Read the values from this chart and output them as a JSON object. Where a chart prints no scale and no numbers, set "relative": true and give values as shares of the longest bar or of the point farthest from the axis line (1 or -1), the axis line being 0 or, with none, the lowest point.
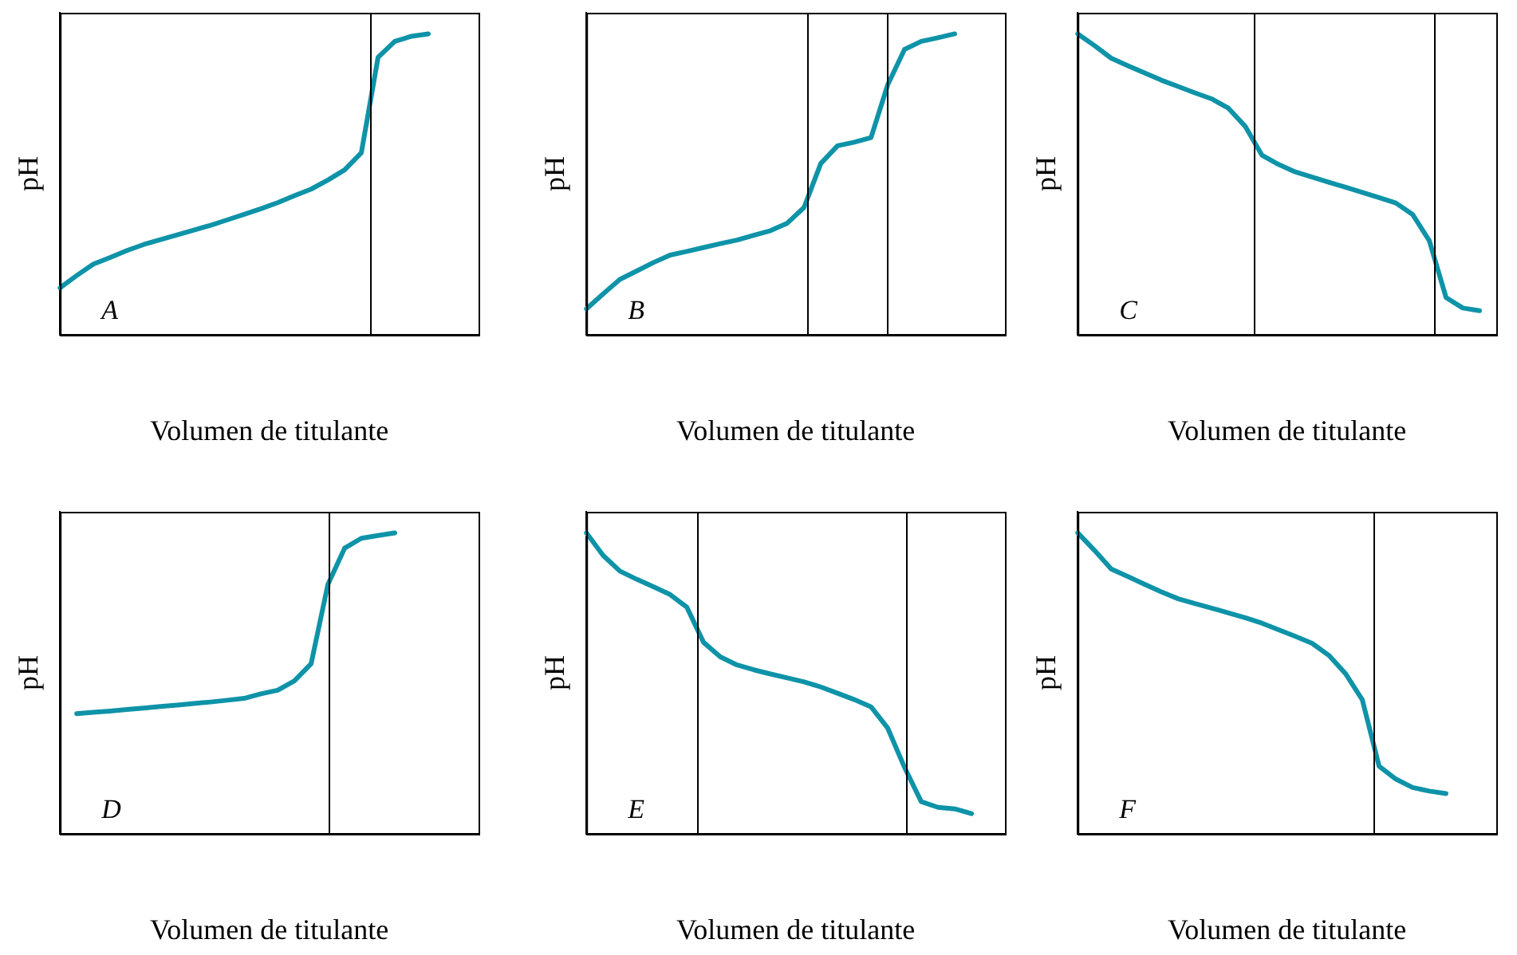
{
  "chart_data": [
    {
      "type": "line",
      "relative": true,
      "xlabel": "Volumen de titulante",
      "ylabel": "pH",
      "annotations": [
        "A"
      ],
      "legend": false,
      "marker": "none",
      "line_style": "solid",
      "categories": [
        null,
        null,
        null,
        null,
        null,
        null,
        null,
        null,
        null,
        null,
        null,
        null,
        null,
        null,
        null,
        null,
        null,
        null,
        null,
        null,
        null,
        null,
        null,
        null,
        null,
        null
      ],
      "series": [
        {
          "color": "#0e93a8",
          "values": [
            0.156,
            0.197,
            0.235,
            0.257,
            0.28,
            0.3,
            0.316,
            0.332,
            0.348,
            0.364,
            0.382,
            0.4,
            0.419,
            0.439,
            0.462,
            0.484,
            0.514,
            0.548,
            0.605,
            0.922,
            0.975,
            0.992,
            1,
            null,
            null,
            null
          ]
        }
      ]
    },
    {
      "type": "line",
      "relative": true,
      "xlabel": "Volumen de titulante",
      "ylabel": "pH",
      "annotations": [
        "B"
      ],
      "legend": false,
      "marker": "none",
      "line_style": "solid",
      "categories": [
        null,
        null,
        null,
        null,
        null,
        null,
        null,
        null,
        null,
        null,
        null,
        null,
        null,
        null,
        null,
        null,
        null,
        null,
        null,
        null,
        null,
        null,
        null,
        null,
        null,
        null
      ],
      "series": [
        {
          "color": "#0e93a8",
          "values": [
            0.086,
            0.136,
            0.184,
            0.212,
            0.24,
            0.265,
            0.277,
            0.29,
            0.303,
            0.315,
            0.331,
            0.346,
            0.371,
            0.423,
            0.569,
            0.628,
            0.64,
            0.655,
            0.831,
            0.948,
            0.975,
            0.987,
            1,
            null,
            null,
            null
          ]
        }
      ]
    },
    {
      "type": "line",
      "relative": true,
      "xlabel": "Volumen de titulante",
      "ylabel": "pH",
      "annotations": [
        "C"
      ],
      "legend": false,
      "marker": "none",
      "line_style": "solid",
      "categories": [
        null,
        null,
        null,
        null,
        null,
        null,
        null,
        null,
        null,
        null,
        null,
        null,
        null,
        null,
        null,
        null,
        null,
        null,
        null,
        null,
        null,
        null,
        null,
        null,
        null,
        null
      ],
      "series": [
        {
          "color": "#0e93a8",
          "values": [
            1,
            0.961,
            0.919,
            0.894,
            0.87,
            0.846,
            0.825,
            0.804,
            0.784,
            0.753,
            0.693,
            0.597,
            0.566,
            0.541,
            0.524,
            0.507,
            0.49,
            0.473,
            0.456,
            0.438,
            0.4,
            0.313,
            0.124,
            0.089,
            0.08,
            null
          ]
        }
      ]
    },
    {
      "type": "line",
      "relative": true,
      "xlabel": "Volumen de titulante",
      "ylabel": "pH",
      "annotations": [
        "D"
      ],
      "legend": false,
      "marker": "none",
      "line_style": "solid",
      "categories": [
        null,
        null,
        null,
        null,
        null,
        null,
        null,
        null,
        null,
        null,
        null,
        null,
        null,
        null,
        null,
        null,
        null,
        null,
        null,
        null,
        null,
        null,
        null,
        null,
        null,
        null
      ],
      "series": [
        {
          "color": "#0e93a8",
          "values": [
            null,
            0.399,
            0.404,
            0.408,
            0.413,
            0.418,
            0.423,
            0.428,
            0.433,
            0.438,
            0.444,
            0.45,
            0.465,
            0.477,
            0.508,
            0.565,
            0.828,
            0.949,
            0.982,
            0.991,
            1,
            null,
            null,
            null,
            null,
            null
          ]
        }
      ]
    },
    {
      "type": "line",
      "relative": true,
      "xlabel": "Volumen de titulante",
      "ylabel": "pH",
      "annotations": [
        "E"
      ],
      "legend": false,
      "marker": "none",
      "line_style": "solid",
      "categories": [
        null,
        null,
        null,
        null,
        null,
        null,
        null,
        null,
        null,
        null,
        null,
        null,
        null,
        null,
        null,
        null,
        null,
        null,
        null,
        null,
        null,
        null,
        null,
        null,
        null,
        null
      ],
      "series": [
        {
          "color": "#0e93a8",
          "values": [
            1,
            0.925,
            0.873,
            0.846,
            0.821,
            0.795,
            0.753,
            0.636,
            0.588,
            0.561,
            0.545,
            0.531,
            0.518,
            0.505,
            0.488,
            0.467,
            0.446,
            0.422,
            0.351,
            0.221,
            0.107,
            0.088,
            0.083,
            0.067,
            null,
            null
          ]
        }
      ]
    },
    {
      "type": "line",
      "relative": true,
      "xlabel": "Volumen de titulante",
      "ylabel": "pH",
      "annotations": [
        "F"
      ],
      "legend": false,
      "marker": "none",
      "line_style": "solid",
      "categories": [
        null,
        null,
        null,
        null,
        null,
        null,
        null,
        null,
        null,
        null,
        null,
        null,
        null,
        null,
        null,
        null,
        null,
        null,
        null,
        null,
        null,
        null,
        null,
        null,
        null,
        null
      ],
      "series": [
        {
          "color": "#0e93a8",
          "values": [
            1,
            0.942,
            0.88,
            0.855,
            0.829,
            0.804,
            0.781,
            0.765,
            0.75,
            0.734,
            0.718,
            0.7,
            0.678,
            0.656,
            0.633,
            0.593,
            0.532,
            0.445,
            0.225,
            0.182,
            0.154,
            0.142,
            0.134,
            null,
            null,
            null
          ]
        }
      ]
    }
  ]
}
